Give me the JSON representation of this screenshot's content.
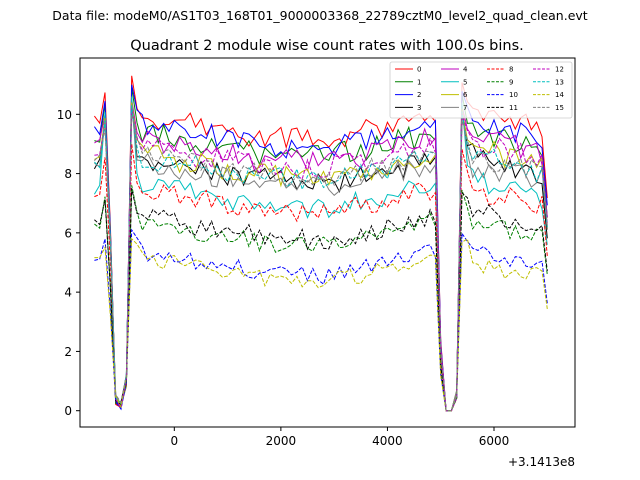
{
  "header": {
    "suptitle": "Data file: modeM0/AS1T03_168T01_9000003368_22789cztM0_level2_quad_clean.evt"
  },
  "chart_data": {
    "type": "line",
    "title": "Quadrant 2 module wise count rates with 100.0s bins.",
    "xlabel": "",
    "ylabel": "",
    "x_offset_label": "+3.1413e8",
    "xlim": [
      -1770,
      7520
    ],
    "ylim": [
      -0.55,
      11.9
    ],
    "xticks": [
      0,
      2000,
      4000,
      6000
    ],
    "yticks": [
      0,
      2,
      4,
      6,
      8,
      10
    ],
    "xtick_labels": [
      "0",
      "2000",
      "4000",
      "6000"
    ],
    "ytick_labels": [
      "0",
      "2",
      "4",
      "6",
      "8",
      "10"
    ],
    "grid": false,
    "legend": {
      "placement": "top-right",
      "ncol": 4
    },
    "x_start": -1500,
    "x_step": 100,
    "x_end": 7000,
    "gap_centers": [
      -1100,
      5150
    ],
    "series": [
      {
        "name": "0",
        "color": "#ff0000",
        "style": "solid",
        "level": 9.5,
        "end_bump": 1.1,
        "peak": 11.3
      },
      {
        "name": "1",
        "color": "#008000",
        "style": "solid",
        "level": 8.9,
        "end_bump": 0.7,
        "peak": 10.9
      },
      {
        "name": "2",
        "color": "#0000ff",
        "style": "solid",
        "level": 9.2,
        "end_bump": 0.9,
        "peak": 11.0
      },
      {
        "name": "3",
        "color": "#000000",
        "style": "solid",
        "level": 8.0,
        "end_bump": 0.9,
        "peak": 10.4
      },
      {
        "name": "4",
        "color": "#bf00bf",
        "style": "solid",
        "level": 8.7,
        "end_bump": 0.8,
        "peak": 10.5
      },
      {
        "name": "5",
        "color": "#00bfbf",
        "style": "solid",
        "level": 7.2,
        "end_bump": 0.8,
        "peak": 10.6
      },
      {
        "name": "6",
        "color": "#bfbf00",
        "style": "solid",
        "level": 8.2,
        "end_bump": 1.0,
        "peak": 10.4
      },
      {
        "name": "7",
        "color": "#808080",
        "style": "solid",
        "level": 7.9,
        "end_bump": 0.5,
        "peak": 10.3
      },
      {
        "name": "8",
        "color": "#ff0000",
        "style": "dashed",
        "level": 7.0,
        "end_bump": 0.6,
        "peak": 9.0
      },
      {
        "name": "9",
        "color": "#008000",
        "style": "dashed",
        "level": 5.9,
        "end_bump": 0.7,
        "peak": 7.6
      },
      {
        "name": "10",
        "color": "#0000ff",
        "style": "dashed",
        "level": 4.9,
        "end_bump": 0.7,
        "peak": 6.1
      },
      {
        "name": "11",
        "color": "#000000",
        "style": "dashed",
        "level": 6.1,
        "end_bump": 0.9,
        "peak": 7.5
      },
      {
        "name": "12",
        "color": "#bf00bf",
        "style": "dashed",
        "level": 8.5,
        "end_bump": 0.7,
        "peak": 10.2
      },
      {
        "name": "13",
        "color": "#00bfbf",
        "style": "dashed",
        "level": 8.1,
        "end_bump": 0.8,
        "peak": 10.3
      },
      {
        "name": "14",
        "color": "#bfbf00",
        "style": "dashed",
        "level": 4.7,
        "end_bump": 0.3,
        "peak": 5.8
      },
      {
        "name": "15",
        "color": "#808080",
        "style": "dashed",
        "level": 8.2,
        "end_bump": 0.5,
        "peak": 10.0
      }
    ]
  }
}
